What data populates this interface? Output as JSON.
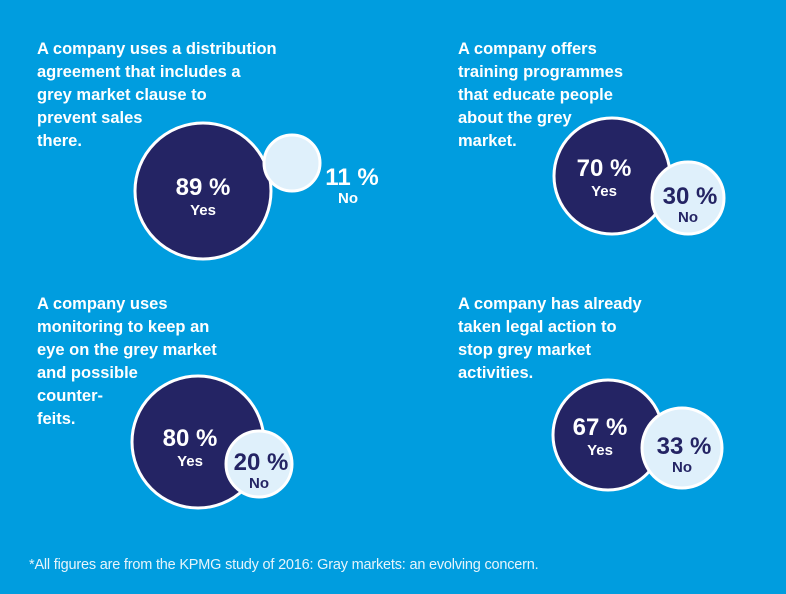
{
  "colors": {
    "background": "#009ddf",
    "yes_fill": "#242464",
    "no_fill": "#dff0fb",
    "ring": "#ffffff",
    "text_light": "#ffffff",
    "text_dark": "#242464"
  },
  "chart_data": [
    {
      "type": "pie",
      "title": "A company uses a distribution agreement that includes a grey market clause to prevent sales there.",
      "categories": [
        "Yes",
        "No"
      ],
      "values": [
        89,
        11
      ],
      "labels": {
        "yes": "89 %",
        "yes_label": "Yes",
        "no": "11 %",
        "no_label": "No"
      },
      "no_label_outside": true
    },
    {
      "type": "pie",
      "title": "A company offers training programmes that educate people about the grey market.",
      "categories": [
        "Yes",
        "No"
      ],
      "values": [
        70,
        30
      ],
      "labels": {
        "yes": "70 %",
        "yes_label": "Yes",
        "no": "30 %",
        "no_label": "No"
      },
      "no_label_outside": false
    },
    {
      "type": "pie",
      "title": "A company uses monitoring to keep an eye on the grey market and possible counter-feits.",
      "categories": [
        "Yes",
        "No"
      ],
      "values": [
        80,
        20
      ],
      "labels": {
        "yes": "80 %",
        "yes_label": "Yes",
        "no": "20 %",
        "no_label": "No"
      },
      "no_label_outside": false
    },
    {
      "type": "pie",
      "title": "A company has already taken legal action to stop grey market activities.",
      "categories": [
        "Yes",
        "No"
      ],
      "values": [
        67,
        33
      ],
      "labels": {
        "yes": "67 %",
        "yes_label": "Yes",
        "no": "33 %",
        "no_label": "No"
      },
      "no_label_outside": false
    }
  ],
  "questions": [
    "A company uses a distribution\nagreement that includes a\ngrey market clause to\nprevent sales\nthere.",
    "A company offers\ntraining programmes\nthat educate people\nabout the grey\nmarket.",
    "A company uses\nmonitoring to keep an\neye on the grey market\nand possible\ncounter-\nfeits.",
    "A company has already\ntaken legal action to\nstop grey market\nactivities."
  ],
  "footnote": "*All figures are from the KPMG study of 2016: Gray markets: an evolving concern."
}
